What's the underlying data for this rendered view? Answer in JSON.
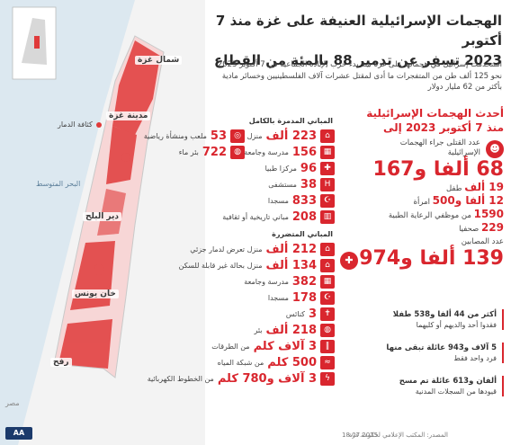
{
  "header": {
    "title_line1": "الهجمات الإسرائيلية العنيفة على غزة منذ 7 أكتوبر",
    "title_line2": "2023 تسفر عن تدمير 88 بالمئة من القطاع",
    "intro": "استخدمت إسرائيل في هجماتها على غزة منذ بدء حرب الإبادة الجماعية في 7 أكتوبر 2023 نحو 125 ألف طن من المتفجرات ما أدى لمقتل عشرات آلاف الفلسطينيين وخسائر مادية بأكثر من 62 مليار دولار"
  },
  "map": {
    "cities": [
      "شمال غزة",
      "مدينة غزة",
      "دير البلح",
      "خان يونس",
      "رفح"
    ],
    "legend": "كثافة الدمار",
    "sea": "البحر المتوسط",
    "egypt": "مصر",
    "colors": {
      "damage": "#e03a3a",
      "land": "#f3f3f3",
      "sea": "#dce8f0"
    }
  },
  "destroyed": {
    "heading": "المباني المدمرة بالكامل",
    "left": [
      {
        "num": "53",
        "label": "ملعب ومنشأة رياضية",
        "icon": "stadium-icon"
      },
      {
        "num": "722",
        "label": "بئر ماء",
        "icon": "well-icon"
      }
    ],
    "right": [
      {
        "num": "223 ألف",
        "label": "منزل",
        "icon": "house-icon"
      },
      {
        "num": "156",
        "label": "مدرسة وجامعة",
        "icon": "school-icon"
      },
      {
        "num": "96",
        "label": "مركزا طبيا",
        "icon": "medical-icon"
      },
      {
        "num": "38",
        "label": "مستشفى",
        "icon": "hospital-icon"
      },
      {
        "num": "833",
        "label": "مسجدا",
        "icon": "mosque-icon"
      },
      {
        "num": "208",
        "label": "مباني تاريخية أو ثقافية",
        "icon": "museum-icon"
      }
    ]
  },
  "damaged": {
    "heading": "المباني المتضررة",
    "rows": [
      {
        "num": "212 ألف",
        "label": "منزل تعرض لدمار جزئي",
        "icon": "house-icon"
      },
      {
        "num": "134 ألف",
        "label": "منزل بحالة غير قابلة للسكن",
        "icon": "house-icon"
      },
      {
        "num": "382",
        "label": "مدرسة وجامعة",
        "icon": "school-icon"
      },
      {
        "num": "178",
        "label": "مسجدا",
        "icon": "mosque-icon"
      },
      {
        "num": "3",
        "label": "كنائس",
        "icon": "church-icon"
      },
      {
        "num": "218 ألف",
        "label": "بئر",
        "icon": "well-icon"
      },
      {
        "num": "3 آلاف كلم",
        "label": "من الطرقات",
        "icon": "road-icon"
      },
      {
        "num": "500 كلم",
        "label": "من شبكة المياه",
        "icon": "water-icon"
      },
      {
        "num": "3 آلاف و780 كلم",
        "label": "من الخطوط الكهربائية",
        "icon": "power-icon"
      }
    ]
  },
  "panel": {
    "title_line1": "أحدث الهجمات الإسرائيلية",
    "title_line2": "منذ 7 أكتوبر 2023 إلى",
    "dead_label": "عدد القتلى جراء الهجمات الإسرائيلية",
    "dead_value": "68 ألفا و167",
    "stats": [
      {
        "num": "19 ألف",
        "label": "طفل"
      },
      {
        "num": "12 ألفا و500",
        "label": "امرأة"
      },
      {
        "num": "1590",
        "label": "من موظفي الرعاية الطبية"
      },
      {
        "num": "229",
        "label": "صحفيا"
      }
    ],
    "injured_label": "عدد المصابين",
    "injured_value": "139 ألفا و974"
  },
  "notes": [
    {
      "bold": "أكثر من 44 ألفا و538 طفلا",
      "text": "فقدوا أحد والديهم أو كليهما"
    },
    {
      "bold": "5 آلاف و943 عائلة تبقى منها",
      "text": "فرد واحد فقط"
    },
    {
      "bold": "ألفان و613 عائلة تم مسح",
      "text": "قيودها من السجلات المدنية"
    }
  ],
  "footer": {
    "logo": "AA",
    "date": "18.07.2025",
    "source": "المصدر: المكتب الإعلامي لحكومة غزة"
  }
}
